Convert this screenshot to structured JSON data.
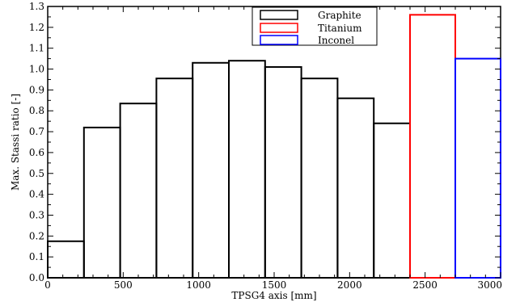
{
  "chart_data": {
    "type": "bar",
    "title": "",
    "xlabel": "TPSG4 axis [mm]",
    "ylabel": "Max. Stassi ratio [-]",
    "xlim": [
      0,
      3000
    ],
    "ylim": [
      0,
      1.3
    ],
    "xticks": [
      "0",
      "500",
      "1000",
      "1500",
      "2000",
      "2500",
      "3000"
    ],
    "yticks": [
      "0.0",
      "0.1",
      "0.2",
      "0.3",
      "0.4",
      "0.5",
      "0.6",
      "0.7",
      "0.8",
      "0.9",
      "1.0",
      "1.1",
      "1.2",
      "1.3"
    ],
    "grid": false,
    "legend_position": "top-right",
    "series": [
      {
        "name": "Graphite",
        "color": "#000000",
        "bins": [
          {
            "x0": 0,
            "x1": 240,
            "value": 0.175
          },
          {
            "x0": 240,
            "x1": 480,
            "value": 0.72
          },
          {
            "x0": 480,
            "x1": 720,
            "value": 0.835
          },
          {
            "x0": 720,
            "x1": 960,
            "value": 0.955
          },
          {
            "x0": 960,
            "x1": 1200,
            "value": 1.03
          },
          {
            "x0": 1200,
            "x1": 1440,
            "value": 1.04
          },
          {
            "x0": 1440,
            "x1": 1680,
            "value": 1.01
          },
          {
            "x0": 1680,
            "x1": 1920,
            "value": 0.955
          },
          {
            "x0": 1920,
            "x1": 2160,
            "value": 0.86
          },
          {
            "x0": 2160,
            "x1": 2400,
            "value": 0.74
          }
        ]
      },
      {
        "name": "Titanium",
        "color": "#ff0000",
        "bins": [
          {
            "x0": 2400,
            "x1": 2700,
            "value": 1.26
          }
        ]
      },
      {
        "name": "Inconel",
        "color": "#0000ff",
        "bins": [
          {
            "x0": 2700,
            "x1": 3000,
            "value": 1.05
          }
        ]
      }
    ]
  }
}
